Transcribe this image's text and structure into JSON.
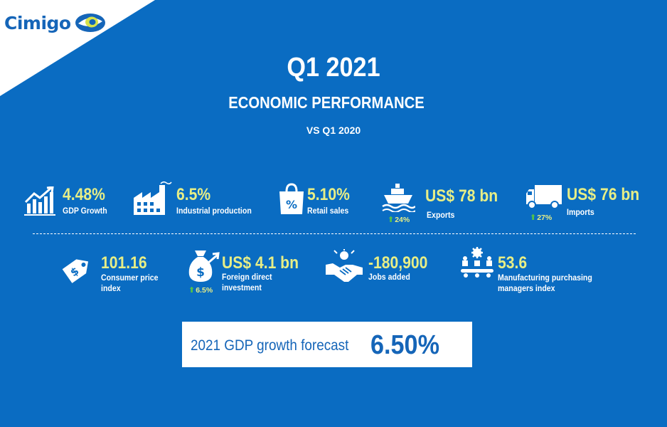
{
  "brand": {
    "name": "Cimigo",
    "color": "#1565b8",
    "accent": "#e7ee86"
  },
  "header": {
    "title": "Q1 2021",
    "subtitle": "ECONOMIC PERFORMANCE",
    "comparison": "VS Q1 2020"
  },
  "stats_row1": [
    {
      "icon": "chart-growth-icon",
      "value": "4.48%",
      "label": "GDP Growth"
    },
    {
      "icon": "factory-icon",
      "value": "6.5%",
      "label": "Industrial production"
    },
    {
      "icon": "shopping-bag-icon",
      "value": "5.10%",
      "label": "Retail sales"
    },
    {
      "icon": "ship-icon",
      "value": "US$ 78 bn",
      "label": "Exports",
      "change": "24%"
    },
    {
      "icon": "truck-icon",
      "value": "US$ 76 bn",
      "label": "Imports",
      "change": "27%"
    }
  ],
  "stats_row2": [
    {
      "icon": "price-tag-icon",
      "value": "101.16",
      "label_line1": "Consumer price",
      "label_line2": "index"
    },
    {
      "icon": "money-bag-icon",
      "value": "US$ 4.1 bn",
      "label_line1": "Foreign direct",
      "label_line2": "investment",
      "change": "6.5%"
    },
    {
      "icon": "handshake-icon",
      "value": "-180,900",
      "label_line1": "Jobs added"
    },
    {
      "icon": "manufacturing-icon",
      "value": "53.6",
      "label_line1": "Manufacturing purchasing",
      "label_line2": "managers index"
    }
  ],
  "forecast": {
    "label": "2021 GDP growth forecast",
    "value": "6.50%"
  }
}
